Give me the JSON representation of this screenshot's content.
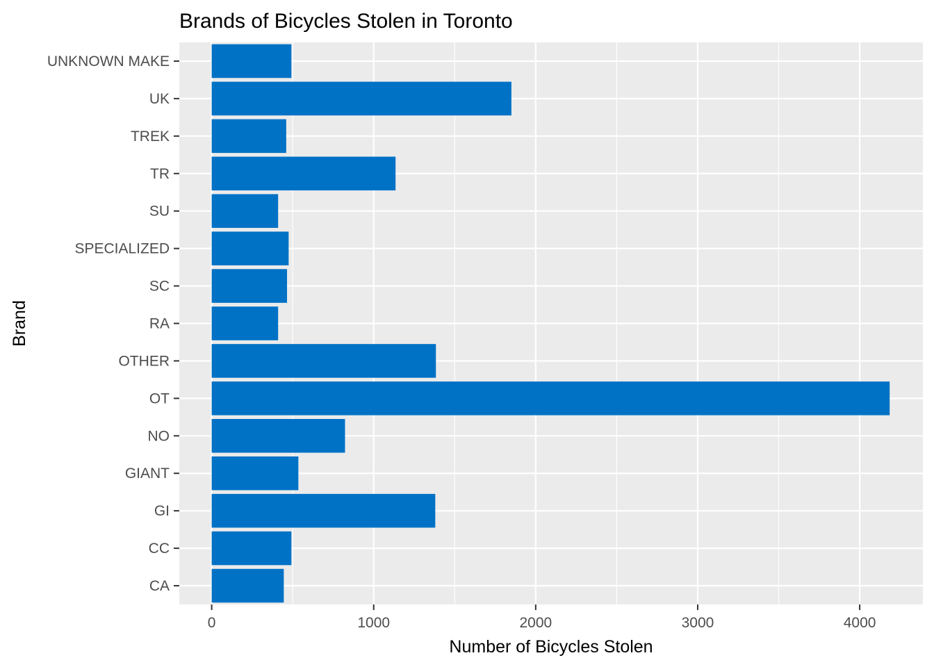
{
  "chart_data": {
    "type": "bar",
    "orientation": "horizontal",
    "title": "Brands of Bicycles Stolen in Toronto",
    "xlabel": "Number of Bicycles Stolen",
    "ylabel": "Brand",
    "categories": [
      "CA",
      "CC",
      "GI",
      "GIANT",
      "NO",
      "OT",
      "OTHER",
      "RA",
      "SC",
      "SPECIALIZED",
      "SU",
      "TR",
      "TREK",
      "UK",
      "UNKNOWN MAKE"
    ],
    "values": [
      445,
      492,
      1380,
      535,
      823,
      4185,
      1384,
      410,
      465,
      475,
      410,
      1135,
      460,
      1850,
      492
    ],
    "xlim": [
      -200,
      4390
    ],
    "xticks": [
      0,
      1000,
      2000,
      3000,
      4000
    ],
    "xtick_labels": [
      "0",
      "1000",
      "2000",
      "3000",
      "4000"
    ],
    "grid": true,
    "legend": "none",
    "bar_color": "#0072C6",
    "panel_background": "#EBEBEB",
    "grid_color": "#FFFFFF"
  }
}
